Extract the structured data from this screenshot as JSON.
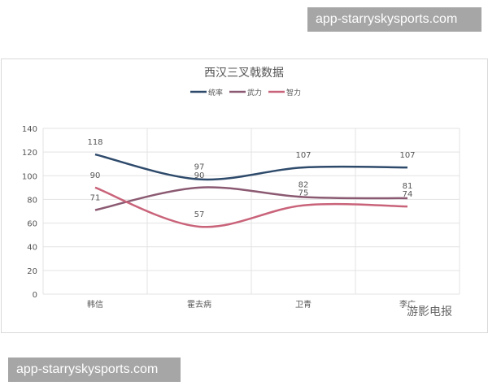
{
  "watermarks": {
    "top": "app-starryskysports.com",
    "bottom": "app-starryskysports.com",
    "brand": "游影电报"
  },
  "chart_data": {
    "type": "line",
    "title": "西汉三叉戟数据",
    "categories": [
      "韩信",
      "霍去病",
      "卫青",
      "李广"
    ],
    "series": [
      {
        "name": "统率",
        "values": [
          118,
          97,
          107,
          107
        ],
        "color": "#2e4a6b"
      },
      {
        "name": "武力",
        "values": [
          71,
          90,
          82,
          81
        ],
        "color": "#8b5a72"
      },
      {
        "name": "智力",
        "values": [
          90,
          57,
          75,
          74
        ],
        "color": "#c9637a"
      }
    ],
    "ylim": [
      0,
      140
    ],
    "yticks": [
      0,
      20,
      40,
      60,
      80,
      100,
      120,
      140
    ],
    "smooth": true,
    "grid": true,
    "legend": "top"
  }
}
